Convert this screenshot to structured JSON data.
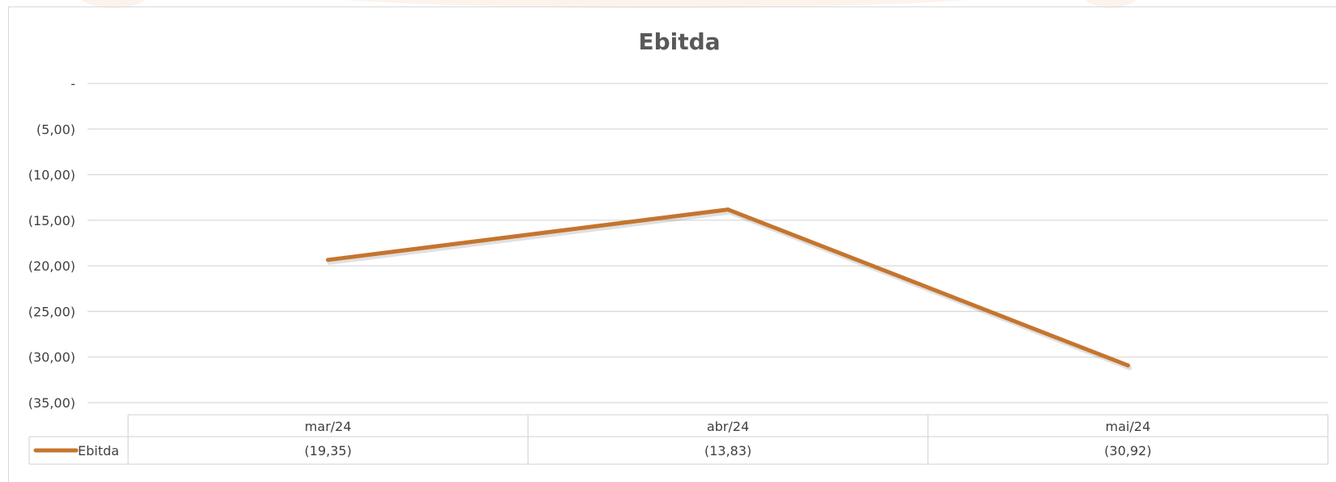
{
  "chart_data": {
    "type": "line",
    "title": "Ebitda",
    "categories": [
      "mar/24",
      "abr/24",
      "mai/24"
    ],
    "series": [
      {
        "name": "Ebitda",
        "values": [
          -19.35,
          -13.83,
          -30.92
        ],
        "value_labels": [
          "(19,35)",
          "(13,83)",
          "(30,92)"
        ],
        "color": "#C5752E"
      }
    ],
    "yticks": [
      0,
      -5,
      -10,
      -15,
      -20,
      -25,
      -30,
      -35
    ],
    "ytick_labels": [
      "-",
      "(5,00)",
      "(10,00)",
      "(15,00)",
      "(20,00)",
      "(25,00)",
      "(30,00)",
      "(35,00)"
    ],
    "ylim": [
      -35,
      0
    ],
    "grid": true,
    "legend": "data-table",
    "xlabel": "",
    "ylabel": ""
  },
  "colors": {
    "gridline": "#d9d9d9",
    "text": "#404040",
    "title": "#595959",
    "series": "#C5752E"
  }
}
